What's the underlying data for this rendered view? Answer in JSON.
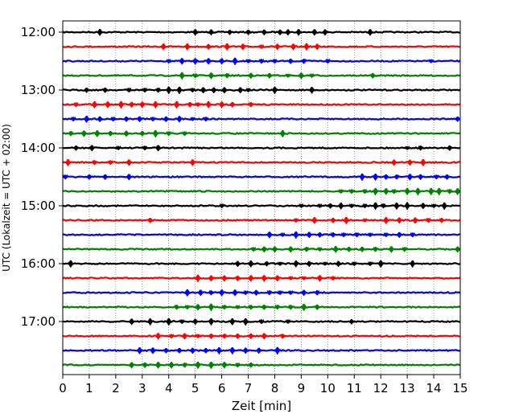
{
  "chart_data": {
    "type": "line",
    "title": "",
    "xlabel": "Zeit  [min]",
    "ylabel": "UTC (Lokalzeit = UTC + 02:00)",
    "xlim": [
      0,
      15
    ],
    "x_ticks": [
      0,
      1,
      2,
      3,
      4,
      5,
      6,
      7,
      8,
      9,
      10,
      11,
      12,
      13,
      14,
      15
    ],
    "x_tick_labels": [
      "0",
      "1",
      "2",
      "3",
      "4",
      "5",
      "6",
      "7",
      "8",
      "9",
      "10",
      "11",
      "12",
      "13",
      "14",
      "15"
    ],
    "y_tick_labels": [
      "12:00",
      "13:00",
      "14:00",
      "15:00",
      "16:00",
      "17:00"
    ],
    "grid": "vertical dotted at each minute",
    "trace_interval_min": 15,
    "colors": [
      "#000000",
      "#ff0000",
      "#0000ff",
      "#008000"
    ],
    "traces": [
      {
        "start": "12:00",
        "bursts": [
          1.4,
          5.0,
          5.6,
          6.3,
          7.0,
          7.6,
          8.2,
          8.5,
          8.9,
          9.5,
          9.9,
          11.6
        ]
      },
      {
        "start": "12:15",
        "bursts": [
          3.8,
          4.7,
          5.5,
          6.2,
          6.8,
          7.5,
          8.1,
          8.7,
          9.2,
          9.6
        ]
      },
      {
        "start": "12:30",
        "bursts": [
          4.0,
          4.5,
          5.0,
          5.5,
          6.0,
          6.5,
          7.0,
          7.5,
          8.0,
          8.6,
          9.1,
          10.0,
          13.9
        ]
      },
      {
        "start": "12:45",
        "bursts": [
          4.5,
          5.0,
          5.6,
          6.2,
          7.1,
          7.8,
          8.5,
          9.0,
          9.4,
          11.7
        ]
      },
      {
        "start": "13:00",
        "bursts": [
          0.9,
          1.6,
          2.5,
          3.1,
          3.6,
          4.0,
          4.4,
          4.9,
          5.3,
          5.7,
          6.1,
          6.7,
          7.0,
          8.0,
          9.4
        ]
      },
      {
        "start": "13:15",
        "bursts": [
          0.5,
          1.2,
          1.7,
          2.2,
          2.6,
          3.0,
          3.5,
          4.3,
          4.8,
          5.1,
          5.5,
          6.0,
          6.4,
          7.1
        ]
      },
      {
        "start": "13:30",
        "bursts": [
          0.4,
          0.9,
          1.4,
          1.9,
          2.4,
          2.9,
          3.4,
          3.9,
          4.4,
          4.9,
          5.4,
          14.9
        ]
      },
      {
        "start": "13:45",
        "bursts": [
          0.3,
          0.8,
          1.3,
          1.8,
          2.4,
          3.0,
          3.5,
          4.0,
          4.6,
          8.3
        ]
      },
      {
        "start": "14:00",
        "bursts": [
          0.5,
          1.1,
          2.1,
          3.1,
          3.6,
          13.0,
          13.5,
          14.6
        ]
      },
      {
        "start": "14:15",
        "bursts": [
          0.2,
          1.2,
          1.8,
          2.5,
          4.9,
          12.5,
          13.1,
          13.6
        ]
      },
      {
        "start": "14:30",
        "bursts": [
          0.1,
          1.0,
          1.6,
          2.5,
          11.3,
          11.8,
          12.2,
          12.6,
          13.1,
          13.5,
          14.1,
          14.5
        ]
      },
      {
        "start": "14:45",
        "bursts": [
          10.5,
          10.9,
          11.4,
          11.8,
          12.2,
          12.5,
          13.0,
          13.4,
          13.9,
          14.2,
          14.6,
          14.9
        ]
      },
      {
        "start": "15:00",
        "bursts": [
          6.0,
          9.0,
          9.7,
          10.1,
          10.5,
          10.9,
          11.4,
          11.8,
          12.1,
          12.6,
          13.0,
          13.6,
          14.0,
          14.4
        ]
      },
      {
        "start": "15:15",
        "bursts": [
          3.3,
          8.8,
          9.5,
          10.2,
          10.7,
          11.4,
          12.2,
          12.7,
          13.3,
          13.8,
          14.3
        ]
      },
      {
        "start": "15:30",
        "bursts": [
          7.8,
          8.3,
          8.8,
          9.3,
          9.7,
          10.2,
          10.6,
          11.1,
          11.6,
          12.2,
          12.7,
          13.2
        ]
      },
      {
        "start": "15:45",
        "bursts": [
          7.2,
          7.6,
          8.0,
          8.6,
          9.2,
          9.7,
          10.3,
          10.8,
          11.3,
          11.8,
          12.4,
          12.9,
          14.9
        ]
      },
      {
        "start": "16:00",
        "bursts": [
          0.3,
          6.6,
          7.1,
          7.7,
          8.2,
          8.8,
          9.3,
          9.9,
          10.4,
          11.0,
          11.6,
          12.0,
          13.2
        ]
      },
      {
        "start": "16:15",
        "bursts": [
          5.1,
          5.6,
          6.1,
          6.6,
          7.1,
          7.6,
          8.1,
          8.6,
          9.1,
          9.7,
          10.2
        ]
      },
      {
        "start": "16:30",
        "bursts": [
          4.7,
          5.2,
          5.6,
          6.0,
          6.5,
          6.9,
          7.3,
          7.8,
          8.2,
          8.6,
          9.1,
          9.6
        ]
      },
      {
        "start": "16:45",
        "bursts": [
          4.3,
          4.7,
          5.1,
          5.6,
          6.1,
          6.6,
          7.1,
          7.6,
          8.1,
          8.6,
          9.1,
          9.6
        ]
      },
      {
        "start": "17:00",
        "bursts": [
          2.6,
          3.3,
          4.0,
          4.5,
          5.0,
          5.6,
          6.4,
          6.9,
          7.5,
          8.5,
          10.9
        ]
      },
      {
        "start": "17:15",
        "bursts": [
          3.6,
          4.1,
          4.6,
          5.1,
          5.6,
          6.1,
          6.6,
          7.1,
          7.6,
          8.3
        ]
      },
      {
        "start": "17:30",
        "bursts": [
          2.9,
          3.4,
          3.9,
          4.4,
          4.9,
          5.4,
          5.9,
          6.4,
          6.9,
          7.4,
          8.1
        ]
      },
      {
        "start": "17:45",
        "bursts": [
          2.6,
          3.1,
          3.6,
          4.1,
          4.6,
          5.1,
          5.6,
          6.1,
          6.6,
          7.1
        ]
      }
    ]
  }
}
